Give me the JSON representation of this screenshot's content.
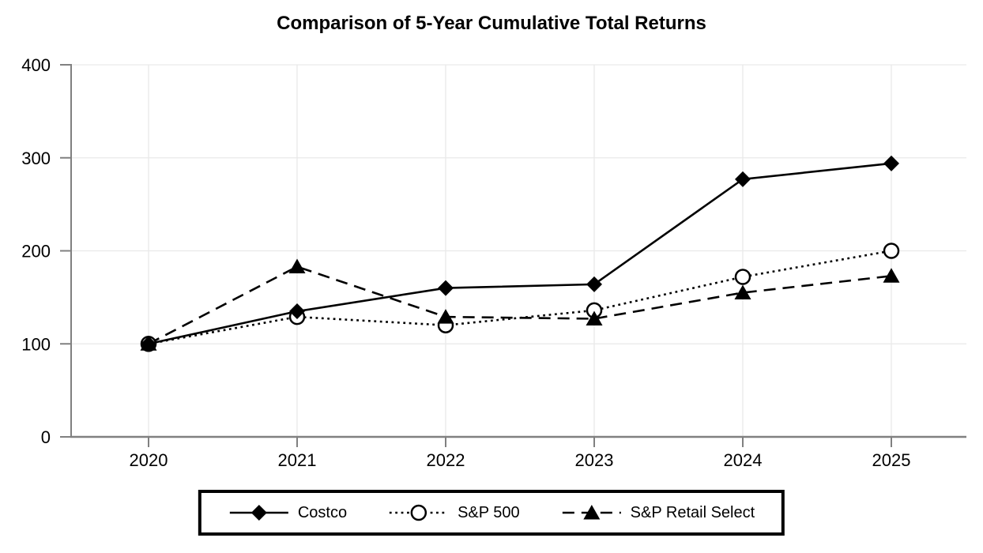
{
  "page": {
    "background": "#ffffff"
  },
  "chart_data": {
    "type": "line",
    "title": "Comparison of 5-Year Cumulative Total Returns",
    "categories": [
      "2020",
      "2021",
      "2022",
      "2023",
      "2024",
      "2025"
    ],
    "series": [
      {
        "name": "Costco",
        "values": [
          100,
          135,
          160,
          164,
          277,
          294
        ],
        "line": "solid",
        "marker": "diamond",
        "color": "#000000"
      },
      {
        "name": "S&P 500",
        "values": [
          100,
          129,
          120,
          136,
          172,
          200
        ],
        "line": "dotted",
        "marker": "circle-open",
        "color": "#000000"
      },
      {
        "name": "S&P Retail Select",
        "values": [
          100,
          183,
          129,
          127,
          155,
          173
        ],
        "line": "dashed",
        "marker": "triangle",
        "color": "#000000"
      }
    ],
    "xlabel": "",
    "ylabel": "",
    "ylim": [
      0,
      400
    ],
    "yticks": [
      0,
      100,
      200,
      300,
      400
    ],
    "grid": true,
    "legend_position": "bottom",
    "colors": {
      "grid": "#e9e9e9",
      "axis": "#808080",
      "text": "#000000"
    }
  }
}
